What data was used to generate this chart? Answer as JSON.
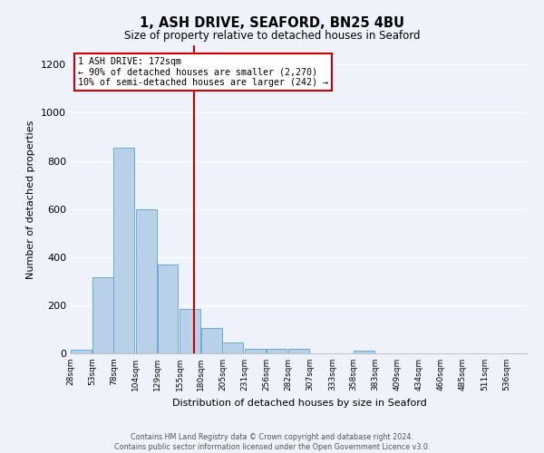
{
  "title": "1, ASH DRIVE, SEAFORD, BN25 4BU",
  "subtitle": "Size of property relative to detached houses in Seaford",
  "xlabel": "Distribution of detached houses by size in Seaford",
  "ylabel": "Number of detached properties",
  "bar_color": "#b8d0e8",
  "bar_edge_color": "#6aaad4",
  "bar_heights": [
    15,
    315,
    855,
    600,
    370,
    185,
    105,
    45,
    20,
    18,
    18,
    0,
    0,
    12,
    0,
    0,
    0,
    0,
    0,
    0,
    0
  ],
  "bin_labels": [
    "28sqm",
    "53sqm",
    "78sqm",
    "104sqm",
    "129sqm",
    "155sqm",
    "180sqm",
    "205sqm",
    "231sqm",
    "256sqm",
    "282sqm",
    "307sqm",
    "333sqm",
    "358sqm",
    "383sqm",
    "409sqm",
    "434sqm",
    "460sqm",
    "485sqm",
    "511sqm",
    "536sqm"
  ],
  "bin_edges": [
    28,
    53,
    78,
    104,
    129,
    155,
    180,
    205,
    231,
    256,
    282,
    307,
    333,
    358,
    383,
    409,
    434,
    460,
    485,
    511,
    536
  ],
  "vline_x": 172,
  "vline_color": "#cc0000",
  "annotation_text": "1 ASH DRIVE: 172sqm\n← 90% of detached houses are smaller (2,270)\n10% of semi-detached houses are larger (242) →",
  "annotation_box_color": "#ffffff",
  "annotation_border_color": "#cc0000",
  "ylim": [
    0,
    1280
  ],
  "yticks": [
    0,
    200,
    400,
    600,
    800,
    1000,
    1200
  ],
  "background_color": "#eef2fa",
  "grid_color": "#ffffff",
  "footer_line1": "Contains HM Land Registry data © Crown copyright and database right 2024.",
  "footer_line2": "Contains public sector information licensed under the Open Government Licence v3.0."
}
